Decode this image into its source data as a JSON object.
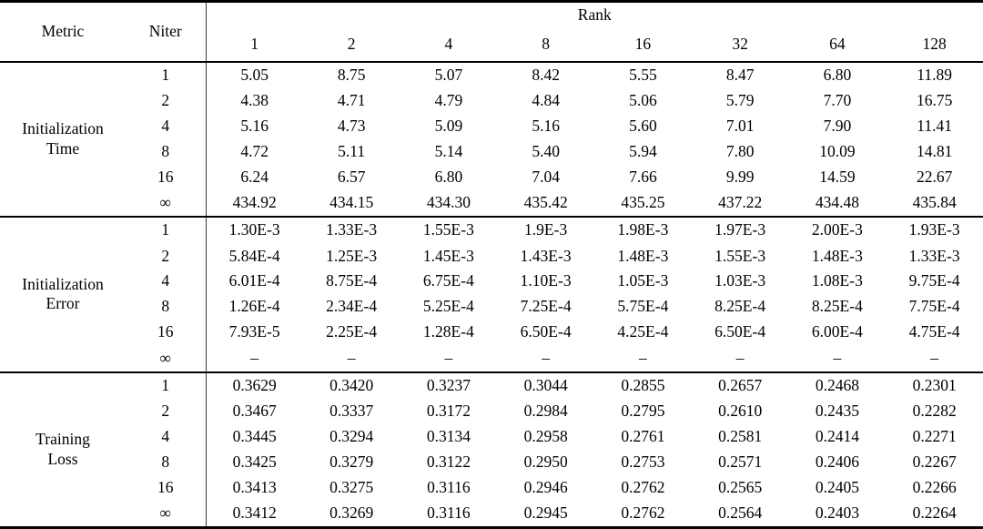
{
  "table": {
    "header": {
      "metric": "Metric",
      "niter": "Niter",
      "rank_group": "Rank",
      "ranks": [
        "1",
        "2",
        "4",
        "8",
        "16",
        "32",
        "64",
        "128"
      ]
    },
    "sections": [
      {
        "id": "initialization-time",
        "metric_lines": [
          "Initialization",
          "Time"
        ],
        "rows": [
          {
            "niter": "1",
            "values": [
              "5.05",
              "8.75",
              "5.07",
              "8.42",
              "5.55",
              "8.47",
              "6.80",
              "11.89"
            ]
          },
          {
            "niter": "2",
            "values": [
              "4.38",
              "4.71",
              "4.79",
              "4.84",
              "5.06",
              "5.79",
              "7.70",
              "16.75"
            ]
          },
          {
            "niter": "4",
            "values": [
              "5.16",
              "4.73",
              "5.09",
              "5.16",
              "5.60",
              "7.01",
              "7.90",
              "11.41"
            ]
          },
          {
            "niter": "8",
            "values": [
              "4.72",
              "5.11",
              "5.14",
              "5.40",
              "5.94",
              "7.80",
              "10.09",
              "14.81"
            ]
          },
          {
            "niter": "16",
            "values": [
              "6.24",
              "6.57",
              "6.80",
              "7.04",
              "7.66",
              "9.99",
              "14.59",
              "22.67"
            ]
          },
          {
            "niter": "∞",
            "values": [
              "434.92",
              "434.15",
              "434.30",
              "435.42",
              "435.25",
              "437.22",
              "434.48",
              "435.84"
            ]
          }
        ]
      },
      {
        "id": "initialization-error",
        "metric_lines": [
          "Initialization",
          "Error"
        ],
        "rows": [
          {
            "niter": "1",
            "values": [
              "1.30E-3",
              "1.33E-3",
              "1.55E-3",
              "1.9E-3",
              "1.98E-3",
              "1.97E-3",
              "2.00E-3",
              "1.93E-3"
            ]
          },
          {
            "niter": "2",
            "values": [
              "5.84E-4",
              "1.25E-3",
              "1.45E-3",
              "1.43E-3",
              "1.48E-3",
              "1.55E-3",
              "1.48E-3",
              "1.33E-3"
            ]
          },
          {
            "niter": "4",
            "values": [
              "6.01E-4",
              "8.75E-4",
              "6.75E-4",
              "1.10E-3",
              "1.05E-3",
              "1.03E-3",
              "1.08E-3",
              "9.75E-4"
            ]
          },
          {
            "niter": "8",
            "values": [
              "1.26E-4",
              "2.34E-4",
              "5.25E-4",
              "7.25E-4",
              "5.75E-4",
              "8.25E-4",
              "8.25E-4",
              "7.75E-4"
            ]
          },
          {
            "niter": "16",
            "values": [
              "7.93E-5",
              "2.25E-4",
              "1.28E-4",
              "6.50E-4",
              "4.25E-4",
              "6.50E-4",
              "6.00E-4",
              "4.75E-4"
            ]
          },
          {
            "niter": "∞",
            "values": [
              "–",
              "–",
              "–",
              "–",
              "–",
              "–",
              "–",
              "–"
            ]
          }
        ]
      },
      {
        "id": "training-loss",
        "metric_lines": [
          "Training",
          "Loss"
        ],
        "rows": [
          {
            "niter": "1",
            "values": [
              "0.3629",
              "0.3420",
              "0.3237",
              "0.3044",
              "0.2855",
              "0.2657",
              "0.2468",
              "0.2301"
            ]
          },
          {
            "niter": "2",
            "values": [
              "0.3467",
              "0.3337",
              "0.3172",
              "0.2984",
              "0.2795",
              "0.2610",
              "0.2435",
              "0.2282"
            ]
          },
          {
            "niter": "4",
            "values": [
              "0.3445",
              "0.3294",
              "0.3134",
              "0.2958",
              "0.2761",
              "0.2581",
              "0.2414",
              "0.2271"
            ]
          },
          {
            "niter": "8",
            "values": [
              "0.3425",
              "0.3279",
              "0.3122",
              "0.2950",
              "0.2753",
              "0.2571",
              "0.2406",
              "0.2267"
            ],
            "bold": [
              false,
              false,
              false,
              false,
              true,
              false,
              false,
              false
            ]
          },
          {
            "niter": "16",
            "values": [
              "0.3413",
              "0.3275",
              "0.3116",
              "0.2946",
              "0.2762",
              "0.2565",
              "0.2405",
              "0.2266"
            ],
            "bold": [
              false,
              false,
              true,
              false,
              false,
              false,
              false,
              false
            ]
          },
          {
            "niter": "∞",
            "values": [
              "0.3412",
              "0.3269",
              "0.3116",
              "0.2945",
              "0.2762",
              "0.2564",
              "0.2403",
              "0.2264"
            ],
            "bold": [
              true,
              true,
              true,
              true,
              false,
              true,
              true,
              true
            ]
          }
        ]
      }
    ]
  }
}
